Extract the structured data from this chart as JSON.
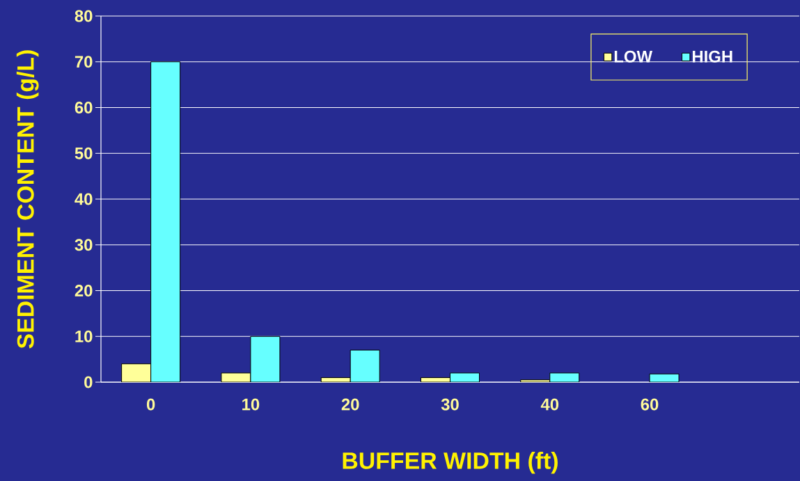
{
  "chart_data": {
    "type": "bar",
    "xlabel": "BUFFER WIDTH (ft)",
    "ylabel": "SEDIMENT CONTENT (g/L)",
    "categories": [
      "0",
      "10",
      "20",
      "30",
      "40",
      "60",
      null
    ],
    "series": [
      {
        "name": "LOW",
        "color": "#ffff99",
        "values": [
          4,
          2,
          1,
          1,
          0.5,
          null,
          null
        ]
      },
      {
        "name": "HIGH",
        "color": "#66ffff",
        "values": [
          70,
          10,
          7,
          2,
          2,
          1.8,
          null
        ]
      }
    ],
    "ylim": [
      0,
      80
    ],
    "yticks": [
      0,
      10,
      20,
      30,
      40,
      50,
      60,
      70,
      80
    ],
    "grid": "y",
    "legend": "top right"
  }
}
